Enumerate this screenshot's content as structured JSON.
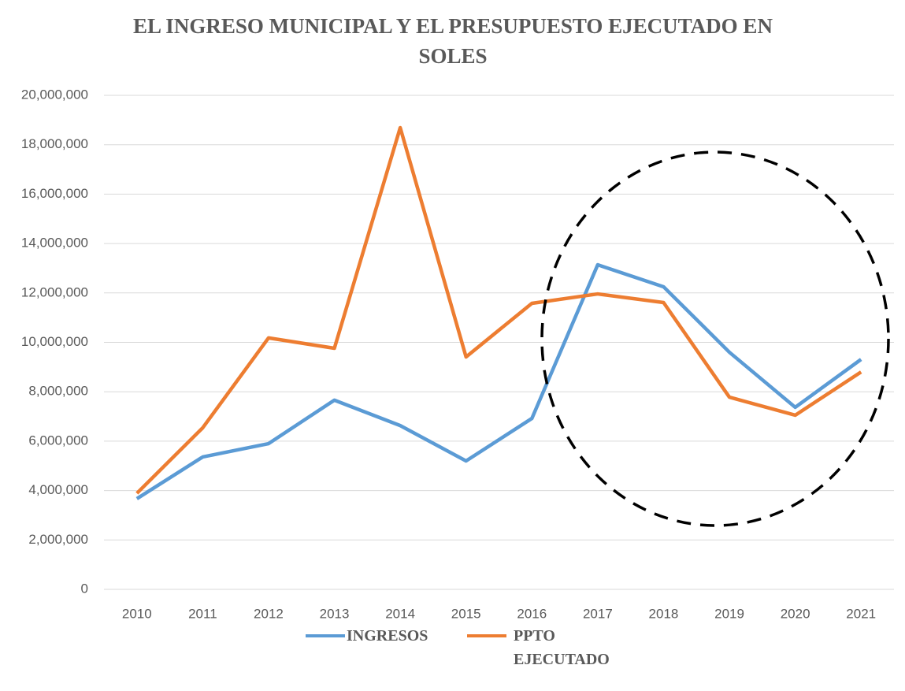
{
  "chart_data": {
    "type": "line",
    "title": "EL INGRESO MUNICIPAL Y EL PRESUPUESTO EJECUTADO EN SOLES",
    "categories": [
      "2010",
      "2011",
      "2012",
      "2013",
      "2014",
      "2015",
      "2016",
      "2017",
      "2018",
      "2019",
      "2020",
      "2021"
    ],
    "series": [
      {
        "name": "INGRESOS",
        "color": "#5b9bd5",
        "values": [
          3670000,
          5360000,
          5900000,
          7660000,
          6630000,
          5200000,
          6920000,
          13140000,
          12250000,
          9600000,
          7370000,
          9310000
        ]
      },
      {
        "name": "PPTO EJECUTADO",
        "color": "#ed7d31",
        "values": [
          3890000,
          6540000,
          10180000,
          9760000,
          18690000,
          9410000,
          11580000,
          11960000,
          11610000,
          7780000,
          7050000,
          8800000
        ]
      }
    ],
    "ylim": [
      0,
      20000000
    ],
    "yticks": [
      {
        "value": 0,
        "label": "0"
      },
      {
        "value": 2000000,
        "label": "2,000,000"
      },
      {
        "value": 4000000,
        "label": "4,000,000"
      },
      {
        "value": 6000000,
        "label": "6,000,000"
      },
      {
        "value": 8000000,
        "label": "8,000,000"
      },
      {
        "value": 10000000,
        "label": "10,000,000"
      },
      {
        "value": 12000000,
        "label": "12,000,000"
      },
      {
        "value": 14000000,
        "label": "14,000,000"
      },
      {
        "value": 16000000,
        "label": "16,000,000"
      },
      {
        "value": 18000000,
        "label": "18,000,000"
      },
      {
        "value": 20000000,
        "label": "20,000,000"
      }
    ],
    "grid": true,
    "legend": "bottom"
  }
}
